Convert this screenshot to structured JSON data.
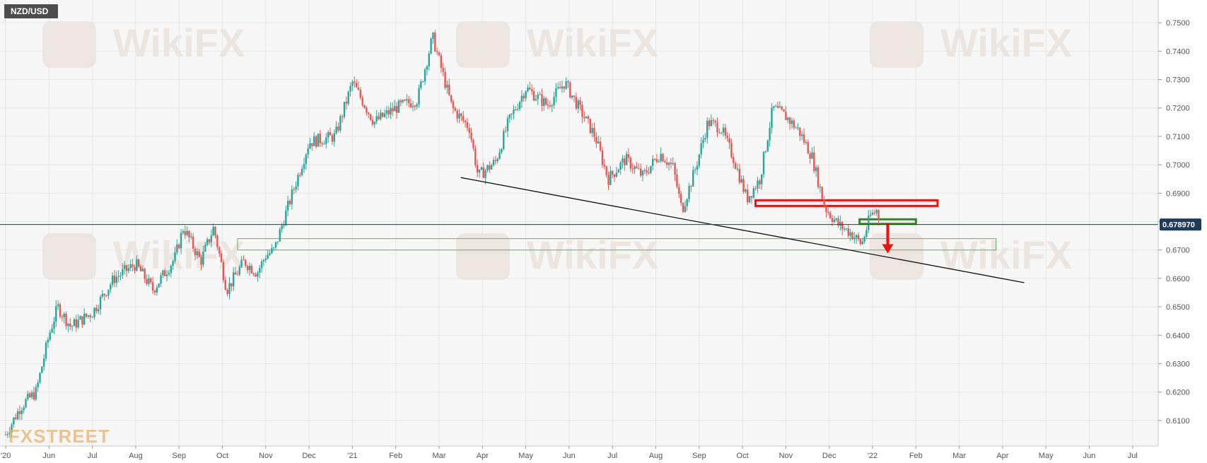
{
  "symbol": "NZD/USD",
  "brand": "FXSTREET",
  "watermark_text": "WikiFX",
  "current_price_label": "0.678970",
  "colors": {
    "up": "#26a69a",
    "down": "#ef5350",
    "grid": "#e6e6e6",
    "plot_bg": "#f7f7f7",
    "price_tag": "#1f3b5c",
    "resistance": "#ee1111",
    "support": "#2e8b1e",
    "zone": "#5cb85c",
    "trendline": "#111111",
    "arrow": "#ee1111",
    "watermark": "#e5d7cf"
  },
  "chart_data": {
    "type": "candlestick",
    "y_ticks": [
      "0.6100",
      "0.6200",
      "0.6300",
      "0.6400",
      "0.6500",
      "0.6600",
      "0.6700",
      "0.6800",
      "0.6900",
      "0.7000",
      "0.7100",
      "0.7200",
      "0.7300",
      "0.7400",
      "0.7500"
    ],
    "ylim": [
      0.601,
      0.758
    ],
    "x_ticks": [
      "'20",
      "Jun",
      "Jul",
      "Aug",
      "Sep",
      "Oct",
      "Nov",
      "Dec",
      "'21",
      "Feb",
      "Mar",
      "Apr",
      "May",
      "Jun",
      "Jul",
      "Aug",
      "Sep",
      "Oct",
      "Nov",
      "Dec",
      "'22",
      "Feb",
      "Mar",
      "Apr",
      "May",
      "Jun",
      "Jul"
    ],
    "x_tick_months": [
      0,
      1,
      2,
      3,
      4,
      5,
      6,
      7,
      8,
      9,
      10,
      11,
      12,
      13,
      14,
      15,
      16,
      17,
      18,
      19,
      20,
      21,
      22,
      23,
      24,
      25,
      26
    ],
    "current_price": 0.67897,
    "anchors": [
      {
        "m": 0.0,
        "p": 0.605
      },
      {
        "m": 0.35,
        "p": 0.615
      },
      {
        "m": 0.7,
        "p": 0.62
      },
      {
        "m": 1.0,
        "p": 0.64
      },
      {
        "m": 1.2,
        "p": 0.65
      },
      {
        "m": 1.5,
        "p": 0.643
      },
      {
        "m": 2.0,
        "p": 0.648
      },
      {
        "m": 2.5,
        "p": 0.66
      },
      {
        "m": 3.0,
        "p": 0.665
      },
      {
        "m": 3.4,
        "p": 0.656
      },
      {
        "m": 3.9,
        "p": 0.667
      },
      {
        "m": 4.1,
        "p": 0.678
      },
      {
        "m": 4.5,
        "p": 0.666
      },
      {
        "m": 4.8,
        "p": 0.678
      },
      {
        "m": 5.1,
        "p": 0.656
      },
      {
        "m": 5.5,
        "p": 0.666
      },
      {
        "m": 5.8,
        "p": 0.662
      },
      {
        "m": 6.0,
        "p": 0.668
      },
      {
        "m": 6.2,
        "p": 0.67
      },
      {
        "m": 6.4,
        "p": 0.68
      },
      {
        "m": 7.0,
        "p": 0.708
      },
      {
        "m": 7.6,
        "p": 0.71
      },
      {
        "m": 8.0,
        "p": 0.729
      },
      {
        "m": 8.5,
        "p": 0.715
      },
      {
        "m": 9.0,
        "p": 0.72
      },
      {
        "m": 9.5,
        "p": 0.723
      },
      {
        "m": 9.85,
        "p": 0.745
      },
      {
        "m": 10.3,
        "p": 0.72
      },
      {
        "m": 10.7,
        "p": 0.713
      },
      {
        "m": 10.9,
        "p": 0.696
      },
      {
        "m": 11.3,
        "p": 0.701
      },
      {
        "m": 11.6,
        "p": 0.715
      },
      {
        "m": 12.0,
        "p": 0.727
      },
      {
        "m": 12.5,
        "p": 0.721
      },
      {
        "m": 12.9,
        "p": 0.729
      },
      {
        "m": 13.3,
        "p": 0.718
      },
      {
        "m": 13.6,
        "p": 0.71
      },
      {
        "m": 13.9,
        "p": 0.695
      },
      {
        "m": 14.3,
        "p": 0.702
      },
      {
        "m": 14.7,
        "p": 0.696
      },
      {
        "m": 15.1,
        "p": 0.704
      },
      {
        "m": 15.4,
        "p": 0.699
      },
      {
        "m": 15.6,
        "p": 0.684
      },
      {
        "m": 15.9,
        "p": 0.698
      },
      {
        "m": 16.2,
        "p": 0.715
      },
      {
        "m": 16.5,
        "p": 0.713
      },
      {
        "m": 16.8,
        "p": 0.702
      },
      {
        "m": 17.1,
        "p": 0.688
      },
      {
        "m": 17.4,
        "p": 0.695
      },
      {
        "m": 17.7,
        "p": 0.72
      },
      {
        "m": 18.0,
        "p": 0.717
      },
      {
        "m": 18.3,
        "p": 0.712
      },
      {
        "m": 18.6,
        "p": 0.703
      },
      {
        "m": 18.9,
        "p": 0.685
      },
      {
        "m": 19.2,
        "p": 0.679
      },
      {
        "m": 19.5,
        "p": 0.676
      },
      {
        "m": 19.75,
        "p": 0.672
      },
      {
        "m": 19.95,
        "p": 0.682
      },
      {
        "m": 20.1,
        "p": 0.684
      },
      {
        "m": 20.18,
        "p": 0.679
      }
    ],
    "trendline": {
      "from": {
        "m": 10.5,
        "p": 0.6955
      },
      "to": {
        "m": 23.5,
        "p": 0.6585
      }
    },
    "zones": [
      {
        "name": "resistance-zone",
        "m1": 17.3,
        "m2": 21.5,
        "p1": 0.6855,
        "p2": 0.6875,
        "style": "red"
      },
      {
        "name": "support-zone-small",
        "m1": 19.7,
        "m2": 21.0,
        "p1": 0.6792,
        "p2": 0.6808,
        "style": "green"
      },
      {
        "name": "support-zone-wide",
        "m1": 5.35,
        "m2": 22.85,
        "p1": 0.67,
        "p2": 0.674,
        "style": "lightgreen"
      }
    ],
    "arrow": {
      "m": 20.35,
      "p_from": 0.6795,
      "p_to": 0.6693
    }
  }
}
